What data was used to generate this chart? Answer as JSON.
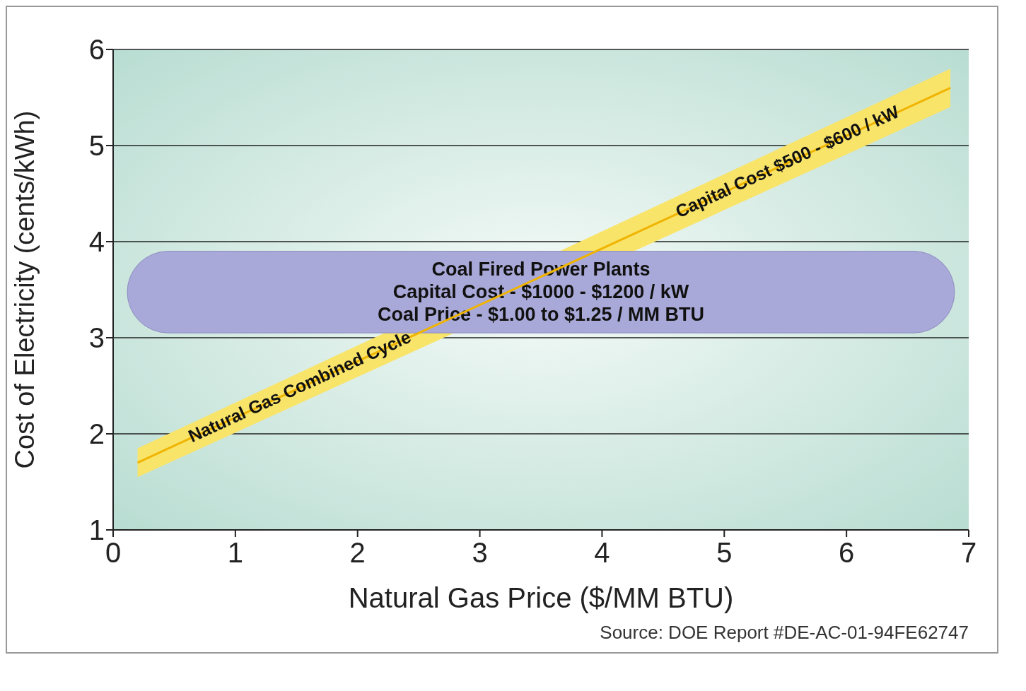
{
  "chart_data": {
    "type": "line",
    "xlabel": "Natural Gas Price ($/MM BTU)",
    "ylabel": "Cost of Electricity (cents/kWh)",
    "xlim": [
      0,
      7
    ],
    "xticks": [
      0,
      1,
      2,
      3,
      4,
      5,
      6,
      7
    ],
    "ylim": [
      1,
      6
    ],
    "yticks": [
      1,
      2,
      3,
      4,
      5,
      6
    ],
    "grid": "y",
    "series": [
      {
        "color": "#f0b400",
        "x": [
          0.2,
          6.85
        ],
        "values": [
          1.7,
          5.6
        ],
        "lower": [
          1.55,
          5.4
        ],
        "upper": [
          1.85,
          5.8
        ]
      }
    ],
    "bands": [
      {
        "axis": "y",
        "from": 3.05,
        "to": 3.9,
        "label": "Coal Fired Power Plants\nCapital Cost - $1000 - $1200 / kW\nCoal Price - $1.00 to $1.25 / MM BTU",
        "color": "#a9a9d9"
      }
    ],
    "annotations": [
      "Natural Gas Combined Cycle",
      "Capital Cost $500 - $600 / kW",
      "Source: DOE Report #DE-AC-01-94FE62747"
    ]
  }
}
